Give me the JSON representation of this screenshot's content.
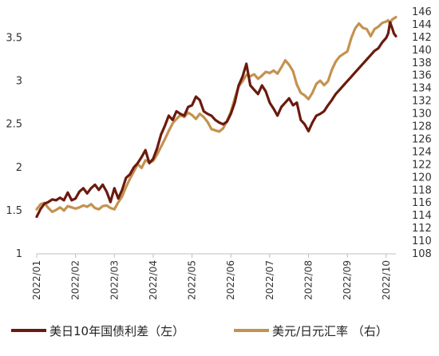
{
  "chart_data": {
    "type": "line",
    "x_labels": [
      "2022/01",
      "2022/02",
      "2022/03",
      "2022/04",
      "2022/05",
      "2022/06",
      "2022/07",
      "2022/08",
      "2022/09",
      "2022/10"
    ],
    "y_left": {
      "ticks": [
        "1",
        "1.5",
        "2",
        "2.5",
        "3",
        "3.5"
      ],
      "range": [
        1,
        3.8
      ]
    },
    "y_right": {
      "ticks": [
        "108",
        "110",
        "112",
        "114",
        "116",
        "118",
        "120",
        "122",
        "124",
        "126",
        "128",
        "130",
        "132",
        "134",
        "136",
        "138",
        "140",
        "142",
        "144",
        "146"
      ],
      "range": [
        108,
        146
      ]
    },
    "legend_position": "bottom",
    "series": [
      {
        "name": "美日10年国债利差（左）",
        "axis": "left",
        "color": "#6b1a0e",
        "points": [
          [
            0,
            1.43
          ],
          [
            0.1,
            1.52
          ],
          [
            0.2,
            1.58
          ],
          [
            0.3,
            1.6
          ],
          [
            0.4,
            1.63
          ],
          [
            0.5,
            1.62
          ],
          [
            0.6,
            1.65
          ],
          [
            0.7,
            1.62
          ],
          [
            0.8,
            1.71
          ],
          [
            0.9,
            1.62
          ],
          [
            1.0,
            1.64
          ],
          [
            1.1,
            1.72
          ],
          [
            1.2,
            1.76
          ],
          [
            1.3,
            1.7
          ],
          [
            1.4,
            1.76
          ],
          [
            1.5,
            1.8
          ],
          [
            1.6,
            1.74
          ],
          [
            1.7,
            1.8
          ],
          [
            1.8,
            1.72
          ],
          [
            1.9,
            1.6
          ],
          [
            2.0,
            1.76
          ],
          [
            2.1,
            1.64
          ],
          [
            2.2,
            1.74
          ],
          [
            2.3,
            1.88
          ],
          [
            2.4,
            1.92
          ],
          [
            2.5,
            2.0
          ],
          [
            2.6,
            2.05
          ],
          [
            2.7,
            2.12
          ],
          [
            2.8,
            2.2
          ],
          [
            2.9,
            2.05
          ],
          [
            3.0,
            2.1
          ],
          [
            3.1,
            2.22
          ],
          [
            3.2,
            2.38
          ],
          [
            3.3,
            2.48
          ],
          [
            3.4,
            2.6
          ],
          [
            3.5,
            2.55
          ],
          [
            3.6,
            2.65
          ],
          [
            3.7,
            2.62
          ],
          [
            3.8,
            2.6
          ],
          [
            3.9,
            2.7
          ],
          [
            4.0,
            2.72
          ],
          [
            4.1,
            2.82
          ],
          [
            4.2,
            2.78
          ],
          [
            4.3,
            2.65
          ],
          [
            4.4,
            2.62
          ],
          [
            4.5,
            2.6
          ],
          [
            4.6,
            2.55
          ],
          [
            4.7,
            2.52
          ],
          [
            4.8,
            2.5
          ],
          [
            4.9,
            2.53
          ],
          [
            5.0,
            2.62
          ],
          [
            5.1,
            2.75
          ],
          [
            5.2,
            2.95
          ],
          [
            5.3,
            3.05
          ],
          [
            5.4,
            3.2
          ],
          [
            5.5,
            2.95
          ],
          [
            5.6,
            2.9
          ],
          [
            5.7,
            2.85
          ],
          [
            5.8,
            2.95
          ],
          [
            5.9,
            2.88
          ],
          [
            6.0,
            2.75
          ],
          [
            6.1,
            2.68
          ],
          [
            6.2,
            2.6
          ],
          [
            6.3,
            2.7
          ],
          [
            6.4,
            2.75
          ],
          [
            6.5,
            2.8
          ],
          [
            6.6,
            2.72
          ],
          [
            6.7,
            2.75
          ],
          [
            6.8,
            2.55
          ],
          [
            6.9,
            2.5
          ],
          [
            7.0,
            2.42
          ],
          [
            7.1,
            2.52
          ],
          [
            7.2,
            2.6
          ],
          [
            7.3,
            2.62
          ],
          [
            7.4,
            2.65
          ],
          [
            7.5,
            2.72
          ],
          [
            7.6,
            2.78
          ],
          [
            7.7,
            2.85
          ],
          [
            7.8,
            2.9
          ],
          [
            7.9,
            2.95
          ],
          [
            8.0,
            3.0
          ],
          [
            8.1,
            3.05
          ],
          [
            8.2,
            3.1
          ],
          [
            8.3,
            3.15
          ],
          [
            8.4,
            3.2
          ],
          [
            8.5,
            3.25
          ],
          [
            8.6,
            3.3
          ],
          [
            8.7,
            3.35
          ],
          [
            8.8,
            3.38
          ],
          [
            8.9,
            3.45
          ],
          [
            9.0,
            3.5
          ],
          [
            9.05,
            3.55
          ],
          [
            9.1,
            3.68
          ],
          [
            9.15,
            3.62
          ],
          [
            9.2,
            3.55
          ],
          [
            9.25,
            3.52
          ]
        ]
      },
      {
        "name": "美元/日元汇率 （右）",
        "axis": "right",
        "color": "#c4924f",
        "points": [
          [
            0,
            115.0
          ],
          [
            0.1,
            115.8
          ],
          [
            0.2,
            116.0
          ],
          [
            0.3,
            115.2
          ],
          [
            0.4,
            114.6
          ],
          [
            0.5,
            114.9
          ],
          [
            0.6,
            115.3
          ],
          [
            0.7,
            114.8
          ],
          [
            0.8,
            115.5
          ],
          [
            0.9,
            115.3
          ],
          [
            1.0,
            115.1
          ],
          [
            1.1,
            115.3
          ],
          [
            1.2,
            115.6
          ],
          [
            1.3,
            115.4
          ],
          [
            1.4,
            115.8
          ],
          [
            1.5,
            115.2
          ],
          [
            1.6,
            115.0
          ],
          [
            1.7,
            115.5
          ],
          [
            1.8,
            115.6
          ],
          [
            1.9,
            115.2
          ],
          [
            2.0,
            115.0
          ],
          [
            2.1,
            116.1
          ],
          [
            2.2,
            117.0
          ],
          [
            2.3,
            118.5
          ],
          [
            2.4,
            119.8
          ],
          [
            2.5,
            120.9
          ],
          [
            2.6,
            122.1
          ],
          [
            2.7,
            121.5
          ],
          [
            2.8,
            122.7
          ],
          [
            2.9,
            122.4
          ],
          [
            3.0,
            122.6
          ],
          [
            3.1,
            123.6
          ],
          [
            3.2,
            124.8
          ],
          [
            3.3,
            126.0
          ],
          [
            3.4,
            127.3
          ],
          [
            3.5,
            128.5
          ],
          [
            3.6,
            129.2
          ],
          [
            3.7,
            129.8
          ],
          [
            3.8,
            129.5
          ],
          [
            3.9,
            130.2
          ],
          [
            4.0,
            129.8
          ],
          [
            4.1,
            129.2
          ],
          [
            4.2,
            130.0
          ],
          [
            4.3,
            129.5
          ],
          [
            4.4,
            128.7
          ],
          [
            4.5,
            127.6
          ],
          [
            4.6,
            127.4
          ],
          [
            4.7,
            127.2
          ],
          [
            4.8,
            127.7
          ],
          [
            4.9,
            128.9
          ],
          [
            5.0,
            130.3
          ],
          [
            5.1,
            132.4
          ],
          [
            5.2,
            134.3
          ],
          [
            5.3,
            135.1
          ],
          [
            5.4,
            136.1
          ],
          [
            5.5,
            135.9
          ],
          [
            5.6,
            136.2
          ],
          [
            5.7,
            135.5
          ],
          [
            5.8,
            136.0
          ],
          [
            5.9,
            136.6
          ],
          [
            6.0,
            136.4
          ],
          [
            6.1,
            136.8
          ],
          [
            6.2,
            136.3
          ],
          [
            6.3,
            137.3
          ],
          [
            6.4,
            138.4
          ],
          [
            6.5,
            137.7
          ],
          [
            6.6,
            136.7
          ],
          [
            6.7,
            134.6
          ],
          [
            6.8,
            133.3
          ],
          [
            6.9,
            132.9
          ],
          [
            7.0,
            132.3
          ],
          [
            7.1,
            133.3
          ],
          [
            7.2,
            134.7
          ],
          [
            7.3,
            135.2
          ],
          [
            7.4,
            134.5
          ],
          [
            7.5,
            135.1
          ],
          [
            7.6,
            136.9
          ],
          [
            7.7,
            138.2
          ],
          [
            7.8,
            139.0
          ],
          [
            7.9,
            139.4
          ],
          [
            8.0,
            139.8
          ],
          [
            8.1,
            141.9
          ],
          [
            8.2,
            143.4
          ],
          [
            8.3,
            144.2
          ],
          [
            8.4,
            143.5
          ],
          [
            8.5,
            143.3
          ],
          [
            8.6,
            142.2
          ],
          [
            8.7,
            143.3
          ],
          [
            8.8,
            143.7
          ],
          [
            8.9,
            144.3
          ],
          [
            9.0,
            144.5
          ],
          [
            9.05,
            144.7
          ],
          [
            9.1,
            144.2
          ],
          [
            9.15,
            144.8
          ],
          [
            9.2,
            145.0
          ],
          [
            9.25,
            145.2
          ]
        ]
      }
    ]
  }
}
